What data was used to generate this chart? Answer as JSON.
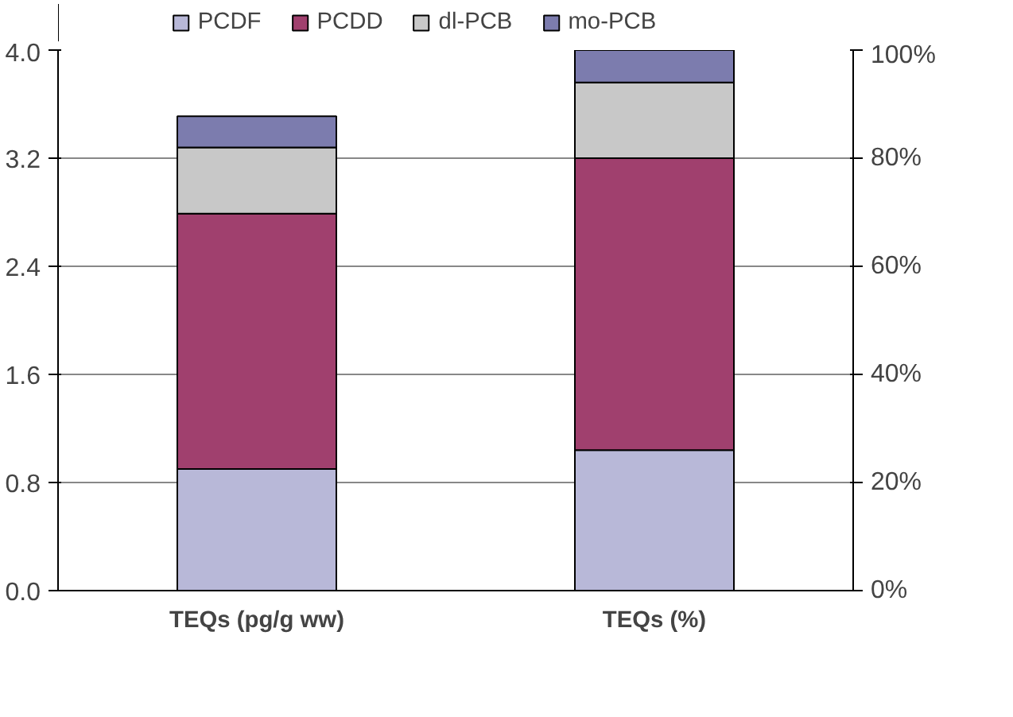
{
  "chart_data": {
    "type": "bar",
    "stacked": true,
    "categories": [
      "TEQs (pg/g ww)",
      "TEQs (%)"
    ],
    "series": [
      {
        "name": "PCDF",
        "color": "#b8b8d8",
        "values": [
          0.9,
          null
        ]
      },
      {
        "name": "PCDD",
        "color": "#a0406e",
        "values": [
          1.89,
          null
        ]
      },
      {
        "name": "dl-PCB",
        "color": "#c8c8c8",
        "values": [
          0.49,
          null
        ]
      },
      {
        "name": "mo-PCB",
        "color": "#7c7cae",
        "values": [
          0.23,
          null
        ]
      },
      {
        "color": "#b8b8d8",
        "axis": "y2",
        "values": [
          null,
          26
        ]
      },
      {
        "color": "#a0406e",
        "axis": "y2",
        "values": [
          null,
          54
        ]
      },
      {
        "color": "#c8c8c8",
        "axis": "y2",
        "values": [
          null,
          14
        ]
      },
      {
        "color": "#7c7cae",
        "axis": "y2",
        "values": [
          null,
          6
        ]
      }
    ],
    "ylim": [
      0,
      4
    ],
    "yticks": [
      {
        "value": 0,
        "label": "0.0"
      },
      0.8,
      1.6,
      2.4,
      3.2,
      {
        "value": 4,
        "label": "4.0"
      }
    ],
    "y2lim": [
      0,
      100
    ],
    "y2ticks": [
      {
        "value": 0,
        "label": "0%"
      },
      {
        "value": 20,
        "label": "20%"
      },
      {
        "value": 40,
        "label": "40%"
      },
      {
        "value": 60,
        "label": "60%"
      },
      {
        "value": 80,
        "label": "80%"
      },
      {
        "value": 100,
        "label": "100%"
      }
    ],
    "grid": "y",
    "legend": "top"
  }
}
